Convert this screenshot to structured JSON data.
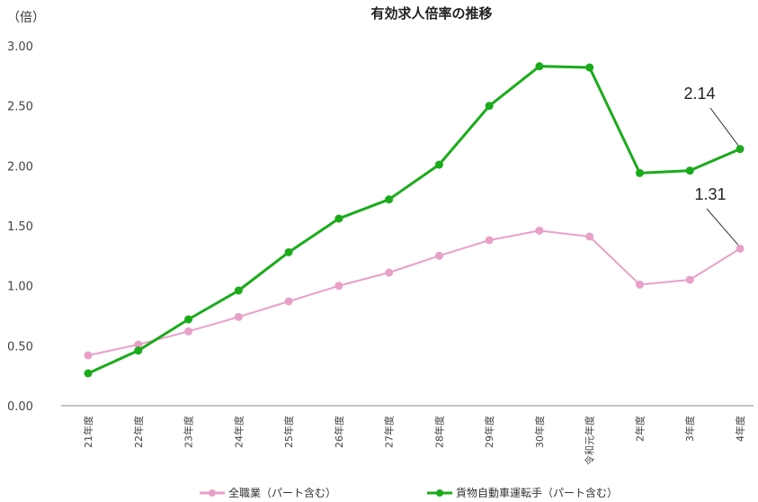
{
  "chart_data": {
    "type": "line",
    "title": "有効求人倍率の推移",
    "ylabel": "（倍）",
    "ylim": [
      0,
      3
    ],
    "yticks": [
      "0.00",
      "0.50",
      "1.00",
      "1.50",
      "2.00",
      "2.50",
      "3.00"
    ],
    "grid": false,
    "categories": [
      "21年度",
      "22年度",
      "23年度",
      "24年度",
      "25年度",
      "26年度",
      "27年度",
      "28年度",
      "29年度",
      "30年度",
      "令和元年度",
      "2年度",
      "3年度",
      "4年度"
    ],
    "series": [
      {
        "name": "全職業（パート含む）",
        "color": "#e8a0c8",
        "values": [
          0.42,
          0.51,
          0.62,
          0.74,
          0.87,
          1.0,
          1.11,
          1.25,
          1.38,
          1.46,
          1.41,
          1.01,
          1.05,
          1.31
        ]
      },
      {
        "name": "貨物自動車運転手（パート含む）",
        "color": "#1aab1a",
        "values": [
          0.27,
          0.46,
          0.72,
          0.96,
          1.28,
          1.56,
          1.72,
          2.01,
          2.5,
          2.83,
          2.82,
          1.94,
          1.96,
          2.14
        ]
      }
    ],
    "annotations": [
      {
        "series": 1,
        "index": 13,
        "text": "2.14"
      },
      {
        "series": 0,
        "index": 13,
        "text": "1.31"
      }
    ],
    "legend_position": "bottom"
  }
}
